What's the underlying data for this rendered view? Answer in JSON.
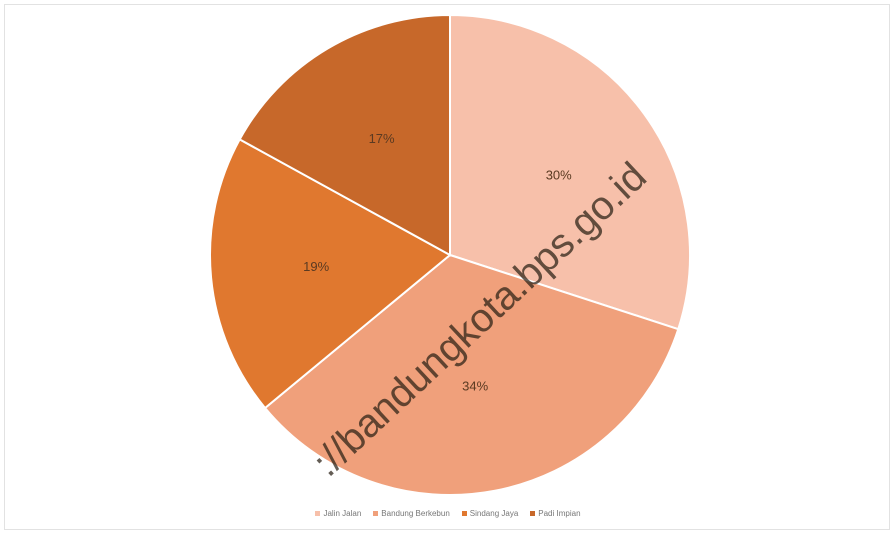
{
  "chart_data": {
    "type": "pie",
    "categories": [
      "Jalin Jalan",
      "Bandung Berkebun",
      "Sindang Jaya",
      "Padi Impian"
    ],
    "values": [
      30,
      34,
      19,
      17
    ],
    "value_labels": [
      "30%",
      "34%",
      "19%",
      "17%"
    ],
    "colors": [
      "#f7c0aa",
      "#f0a07b",
      "#e0782f",
      "#c7682a"
    ],
    "legend_position": "bottom",
    "start": "12 o'clock, clockwise"
  },
  "watermark": "://bandungkota.bps.go.id"
}
